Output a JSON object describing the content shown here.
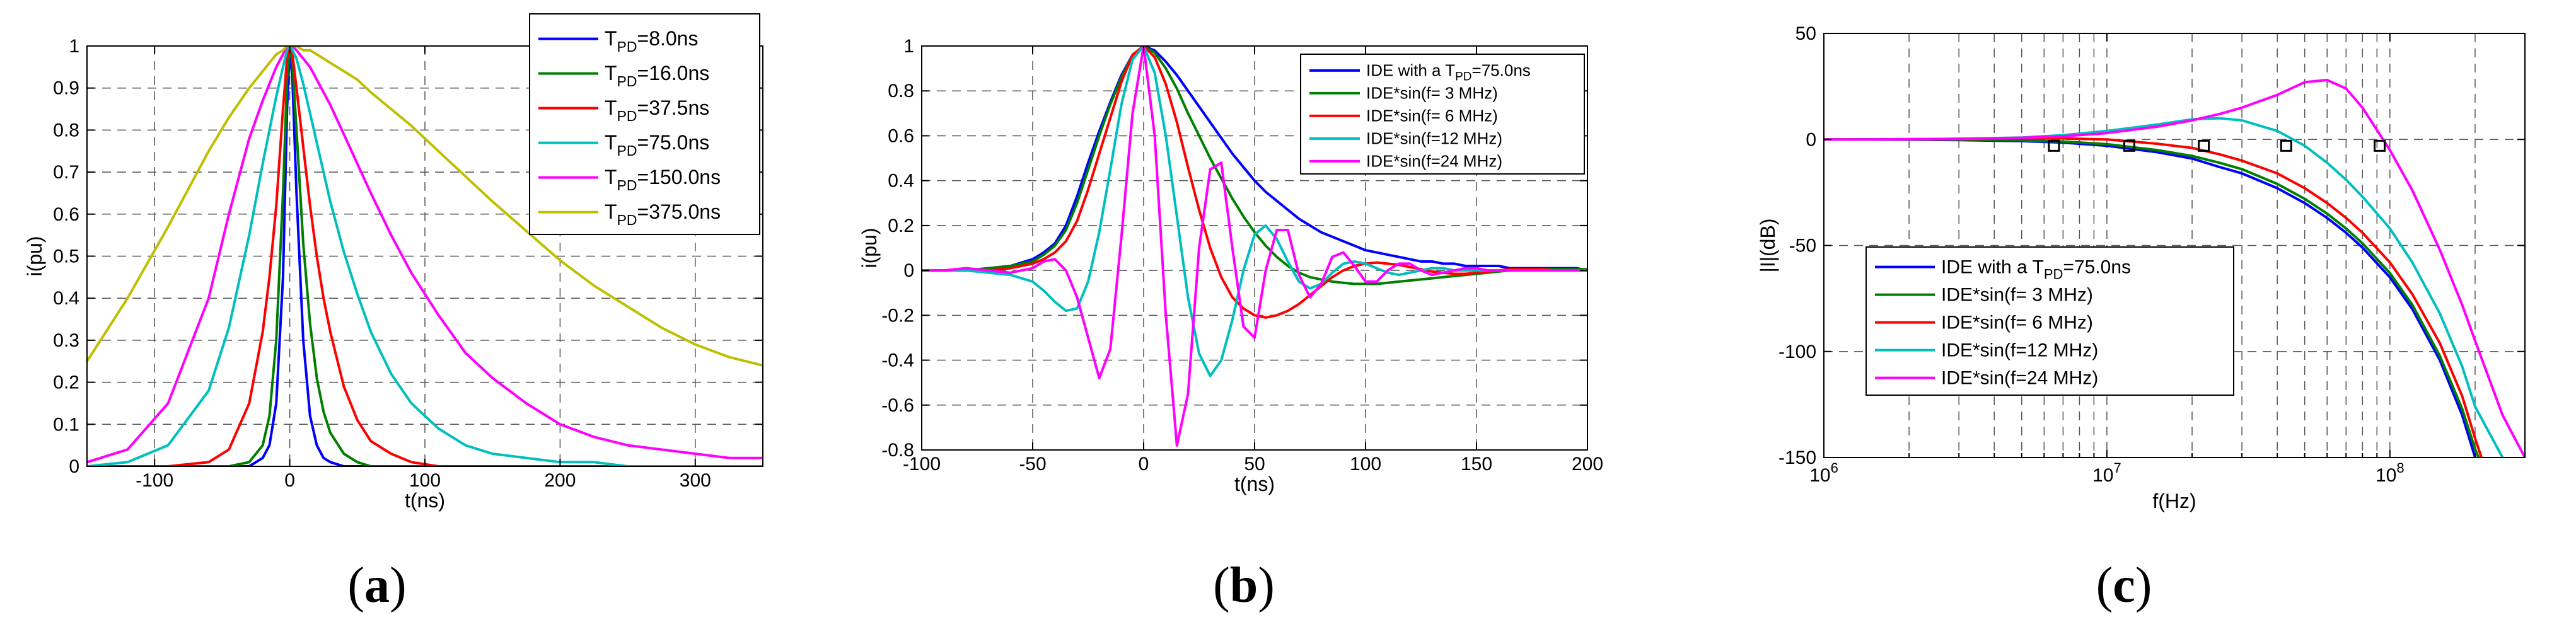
{
  "panels": [
    {
      "label": "(a)",
      "chart_data": {
        "type": "line",
        "title": "",
        "xlabel": "t(ns)",
        "ylabel": "i(pu)",
        "xlim": [
          -150,
          350
        ],
        "ylim": [
          0,
          1
        ],
        "xticks": [
          -100,
          0,
          100,
          200,
          300
        ],
        "yticks": [
          0,
          0.1,
          0.2,
          0.3,
          0.4,
          0.5,
          0.6,
          0.7,
          0.8,
          0.9,
          1
        ],
        "grid": true,
        "legend_position": "top-right",
        "x": [
          -150,
          -120,
          -90,
          -60,
          -45,
          -30,
          -20,
          -15,
          -10,
          -5,
          -2,
          0,
          2,
          5,
          10,
          15,
          20,
          25,
          30,
          40,
          50,
          60,
          75,
          90,
          110,
          130,
          150,
          175,
          200,
          225,
          250,
          275,
          300,
          325,
          350
        ],
        "series": [
          {
            "name": "T_PD=8.0ns",
            "legend_main": "T",
            "legend_sub": "PD",
            "legend_value": "=8.0ns",
            "color": "#0000ff",
            "values": [
              0,
              0,
              0,
              0,
              0,
              0,
              0.02,
              0.05,
              0.15,
              0.45,
              0.85,
              1,
              0.92,
              0.65,
              0.3,
              0.12,
              0.05,
              0.02,
              0.01,
              0,
              0,
              0,
              0,
              0,
              0,
              0,
              0,
              0,
              0,
              0,
              0,
              0,
              0,
              0,
              0
            ]
          },
          {
            "name": "T_PD=16.0ns",
            "legend_main": "T",
            "legend_sub": "PD",
            "legend_value": "=16.0ns",
            "color": "#008000",
            "values": [
              0,
              0,
              0,
              0,
              0,
              0.01,
              0.05,
              0.12,
              0.3,
              0.65,
              0.92,
              1,
              0.96,
              0.8,
              0.53,
              0.34,
              0.21,
              0.13,
              0.08,
              0.03,
              0.01,
              0,
              0,
              0,
              0,
              0,
              0,
              0,
              0,
              0,
              0,
              0,
              0,
              0,
              0
            ]
          },
          {
            "name": "T_PD=37.5ns",
            "legend_main": "T",
            "legend_sub": "PD",
            "legend_value": "=37.5ns",
            "color": "#ff0000",
            "values": [
              0,
              0,
              0,
              0.01,
              0.04,
              0.15,
              0.32,
              0.45,
              0.62,
              0.85,
              0.97,
              1,
              0.98,
              0.9,
              0.76,
              0.62,
              0.5,
              0.4,
              0.32,
              0.19,
              0.11,
              0.06,
              0.03,
              0.01,
              0,
              0,
              0,
              0,
              0,
              0,
              0,
              0,
              0,
              0,
              0
            ]
          },
          {
            "name": "T_PD=75.0ns",
            "legend_main": "T",
            "legend_sub": "PD",
            "legend_value": "=75.0ns",
            "color": "#00bfbf",
            "values": [
              0,
              0.01,
              0.05,
              0.18,
              0.33,
              0.55,
              0.72,
              0.8,
              0.88,
              0.95,
              0.99,
              1,
              0.99,
              0.97,
              0.91,
              0.84,
              0.77,
              0.7,
              0.63,
              0.51,
              0.41,
              0.32,
              0.22,
              0.15,
              0.09,
              0.05,
              0.03,
              0.02,
              0.01,
              0.01,
              0,
              0,
              0,
              0,
              0
            ]
          },
          {
            "name": "T_PD=150.0ns",
            "legend_main": "T",
            "legend_sub": "PD",
            "legend_value": "=150.0ns",
            "color": "#ff00ff",
            "values": [
              0.01,
              0.04,
              0.15,
              0.4,
              0.6,
              0.78,
              0.87,
              0.91,
              0.95,
              0.98,
              1,
              1,
              1,
              0.99,
              0.97,
              0.95,
              0.92,
              0.89,
              0.86,
              0.79,
              0.72,
              0.65,
              0.55,
              0.46,
              0.36,
              0.27,
              0.21,
              0.15,
              0.1,
              0.07,
              0.05,
              0.04,
              0.03,
              0.02,
              0.02
            ]
          },
          {
            "name": "T_PD=375.0ns",
            "legend_main": "T",
            "legend_sub": "PD",
            "legend_value": "=375.0ns",
            "color": "#bfbf00",
            "values": [
              0.25,
              0.4,
              0.57,
              0.75,
              0.83,
              0.9,
              0.94,
              0.96,
              0.98,
              0.99,
              1,
              1,
              1,
              1,
              0.99,
              0.99,
              0.98,
              0.97,
              0.96,
              0.94,
              0.92,
              0.89,
              0.85,
              0.81,
              0.75,
              0.69,
              0.63,
              0.56,
              0.49,
              0.43,
              0.38,
              0.33,
              0.29,
              0.26,
              0.24
            ]
          }
        ]
      }
    },
    {
      "label": "(b)",
      "chart_data": {
        "type": "line",
        "title": "",
        "xlabel": "t(ns)",
        "ylabel": "i(pu)",
        "xlim": [
          -100,
          200
        ],
        "ylim": [
          -0.8,
          1
        ],
        "xticks": [
          -100,
          -50,
          0,
          50,
          100,
          150,
          200
        ],
        "yticks": [
          -0.8,
          -0.6,
          -0.4,
          -0.2,
          0,
          0.2,
          0.4,
          0.6,
          0.8,
          1
        ],
        "grid": true,
        "legend_position": "top-right",
        "x": [
          -100,
          -90,
          -80,
          -70,
          -60,
          -50,
          -45,
          -40,
          -35,
          -30,
          -25,
          -20,
          -15,
          -10,
          -5,
          0,
          5,
          10,
          15,
          20,
          25,
          30,
          35,
          40,
          45,
          50,
          55,
          60,
          65,
          70,
          75,
          80,
          85,
          90,
          95,
          100,
          105,
          110,
          115,
          120,
          125,
          130,
          135,
          140,
          145,
          150,
          155,
          160,
          165,
          170,
          175,
          180,
          185,
          190,
          195,
          200
        ],
        "series": [
          {
            "name": "IDE with a T_PD=75.0ns",
            "legend_main": "IDE with a T",
            "legend_sub": "PD",
            "legend_value": "=75.0ns",
            "color": "#0000ff",
            "values": [
              0,
              0,
              0,
              0.01,
              0.02,
              0.05,
              0.08,
              0.12,
              0.2,
              0.33,
              0.48,
              0.62,
              0.75,
              0.87,
              0.96,
              1,
              0.98,
              0.93,
              0.87,
              0.8,
              0.73,
              0.66,
              0.59,
              0.52,
              0.46,
              0.4,
              0.35,
              0.31,
              0.27,
              0.23,
              0.2,
              0.17,
              0.15,
              0.13,
              0.11,
              0.09,
              0.08,
              0.07,
              0.06,
              0.05,
              0.04,
              0.04,
              0.03,
              0.03,
              0.02,
              0.02,
              0.02,
              0.02,
              0.01,
              0.01,
              0.01,
              0.01,
              0.01,
              0.01,
              0.01,
              0
            ]
          },
          {
            "name": "IDE*sin(f= 3 MHz)",
            "legend_main": "IDE*sin(f= 3 MHz)",
            "legend_sub": "",
            "legend_value": "",
            "color": "#008000",
            "values": [
              0,
              0,
              0,
              0.01,
              0.02,
              0.04,
              0.07,
              0.11,
              0.18,
              0.3,
              0.45,
              0.6,
              0.74,
              0.86,
              0.96,
              1,
              0.97,
              0.9,
              0.81,
              0.7,
              0.6,
              0.5,
              0.41,
              0.32,
              0.24,
              0.17,
              0.11,
              0.06,
              0.02,
              -0.01,
              -0.03,
              -0.04,
              -0.05,
              -0.055,
              -0.06,
              -0.06,
              -0.06,
              -0.055,
              -0.05,
              -0.045,
              -0.04,
              -0.035,
              -0.03,
              -0.025,
              -0.02,
              -0.015,
              -0.01,
              -0.005,
              0,
              0,
              0.005,
              0.005,
              0.005,
              0.005,
              0.005,
              0.005
            ]
          },
          {
            "name": "IDE*sin(f= 6 MHz)",
            "legend_main": "IDE*sin(f= 6 MHz)",
            "legend_sub": "",
            "legend_value": "",
            "color": "#ff0000",
            "values": [
              0,
              0,
              0,
              0,
              0.01,
              0.03,
              0.05,
              0.08,
              0.13,
              0.22,
              0.36,
              0.52,
              0.68,
              0.84,
              0.96,
              1,
              0.95,
              0.83,
              0.66,
              0.46,
              0.27,
              0.1,
              -0.03,
              -0.12,
              -0.17,
              -0.2,
              -0.21,
              -0.2,
              -0.18,
              -0.15,
              -0.11,
              -0.07,
              -0.03,
              0,
              0.02,
              0.03,
              0.035,
              0.03,
              0.025,
              0.015,
              0.005,
              -0.005,
              -0.01,
              -0.015,
              -0.015,
              -0.01,
              -0.005,
              0,
              0.005,
              0.005,
              0.005,
              0.005,
              0,
              0,
              0,
              0
            ]
          },
          {
            "name": "IDE*sin(f=12 MHz)",
            "legend_main": "IDE*sin(f=12 MHz)",
            "legend_sub": "",
            "legend_value": "",
            "color": "#00bfbf",
            "values": [
              0,
              0,
              0,
              -0.01,
              -0.02,
              -0.05,
              -0.09,
              -0.14,
              -0.18,
              -0.17,
              -0.05,
              0.17,
              0.45,
              0.74,
              0.94,
              1,
              0.88,
              0.6,
              0.24,
              -0.12,
              -0.37,
              -0.47,
              -0.4,
              -0.22,
              0,
              0.16,
              0.2,
              0.14,
              0.04,
              -0.05,
              -0.08,
              -0.06,
              -0.01,
              0.03,
              0.04,
              0.03,
              0.01,
              -0.01,
              -0.02,
              -0.01,
              0,
              0.01,
              0.01,
              0,
              0,
              0,
              0,
              0,
              0,
              0,
              0,
              0,
              0,
              0,
              0,
              0
            ]
          },
          {
            "name": "IDE*sin(f=24 MHz)",
            "legend_main": "IDE*sin(f=24 MHz)",
            "legend_sub": "",
            "legend_value": "",
            "color": "#ff00ff",
            "values": [
              0,
              0,
              0.01,
              0,
              -0.01,
              0.01,
              0.04,
              0.05,
              0,
              -0.12,
              -0.3,
              -0.48,
              -0.35,
              0.15,
              0.7,
              1,
              0.6,
              -0.2,
              -0.78,
              -0.55,
              0.1,
              0.45,
              0.48,
              0.1,
              -0.25,
              -0.3,
              0,
              0.18,
              0.18,
              -0.02,
              -0.12,
              -0.06,
              0.06,
              0.08,
              0.02,
              -0.05,
              -0.05,
              0,
              0.03,
              0.03,
              0,
              -0.02,
              -0.01,
              0,
              0.01,
              0.01,
              0,
              0,
              0,
              0,
              0,
              0,
              0,
              0,
              0,
              0
            ]
          }
        ]
      }
    },
    {
      "label": "(c)",
      "chart_data": {
        "type": "line",
        "title": "",
        "xlabel": "f(Hz)",
        "ylabel": "|I|(dB)",
        "xscale": "log",
        "xlim": [
          1000000,
          300000000
        ],
        "ylim": [
          -150,
          50
        ],
        "xticks": [
          1000000,
          10000000,
          100000000
        ],
        "xtick_labels": [
          {
            "base": "10",
            "exp": "6"
          },
          {
            "base": "10",
            "exp": "7"
          },
          {
            "base": "10",
            "exp": "8"
          }
        ],
        "yticks": [
          -150,
          -100,
          -50,
          0,
          50
        ],
        "grid": true,
        "legend_position": "bottom-left",
        "x": [
          1000000,
          2000000,
          3000000,
          5000000,
          7000000,
          10000000,
          15000000,
          20000000,
          25000000,
          30000000,
          40000000,
          50000000,
          60000000,
          70000000,
          80000000,
          100000000,
          120000000,
          150000000,
          180000000,
          200000000,
          250000000,
          300000000
        ],
        "series": [
          {
            "name": "IDE with a T_PD=75.0ns",
            "legend_main": "IDE with a T",
            "legend_sub": "PD",
            "legend_value": "=75.0ns",
            "color": "#0000ff",
            "values": [
              0,
              -0.1,
              -0.3,
              -0.8,
              -1.5,
              -3,
              -6,
              -9,
              -13,
              -16,
              -23,
              -30,
              -37,
              -44,
              -51,
              -65,
              -80,
              -104,
              -130,
              -150,
              null,
              null
            ]
          },
          {
            "name": "IDE*sin(f= 3 MHz)",
            "legend_main": "IDE*sin(f= 3 MHz)",
            "legend_sub": "",
            "legend_value": "",
            "color": "#008000",
            "values": [
              0,
              0,
              -0.1,
              -0.4,
              -1,
              -2.2,
              -5,
              -7.8,
              -11,
              -14,
              -21,
              -28,
              -35,
              -42,
              -49,
              -63,
              -78,
              -102,
              -127,
              -146,
              null,
              null
            ]
          },
          {
            "name": "IDE*sin(f= 6 MHz)",
            "legend_main": "IDE*sin(f= 6 MHz)",
            "legend_sub": "",
            "legend_value": "",
            "color": "#ff0000",
            "values": [
              0,
              0.1,
              0.2,
              0.5,
              0.5,
              0,
              -2,
              -4,
              -7,
              -10,
              -16,
              -23,
              -30,
              -37,
              -44,
              -58,
              -73,
              -96,
              -121,
              -141,
              null,
              null
            ]
          },
          {
            "name": "IDE*sin(f=12 MHz)",
            "legend_main": "IDE*sin(f=12 MHz)",
            "legend_sub": "",
            "legend_value": "",
            "color": "#00bfbf",
            "values": [
              0,
              0.1,
              0.3,
              0.9,
              2,
              4,
              7,
              9.5,
              10,
              9,
              4,
              -3,
              -11,
              -19,
              -27,
              -42,
              -58,
              -82,
              -107,
              -126,
              -150,
              null
            ]
          },
          {
            "name": "IDE*sin(f=24 MHz)",
            "legend_main": "IDE*sin(f=24 MHz)",
            "legend_sub": "",
            "legend_value": "",
            "color": "#ff00ff",
            "values": [
              0,
              0.1,
              0.3,
              0.8,
              1.5,
              3,
              6,
              9,
              12,
              15,
              21,
              27,
              28,
              24,
              15,
              -5,
              -24,
              -52,
              -78,
              -95,
              -130,
              -150
            ]
          }
        ],
        "markers": {
          "label": "square markers (~ -3 dB points)",
          "x": [
            6500000,
            12000000,
            22000000,
            43000000,
            92000000
          ],
          "y": [
            -3,
            -3,
            -3,
            -3,
            -3
          ]
        }
      }
    }
  ]
}
